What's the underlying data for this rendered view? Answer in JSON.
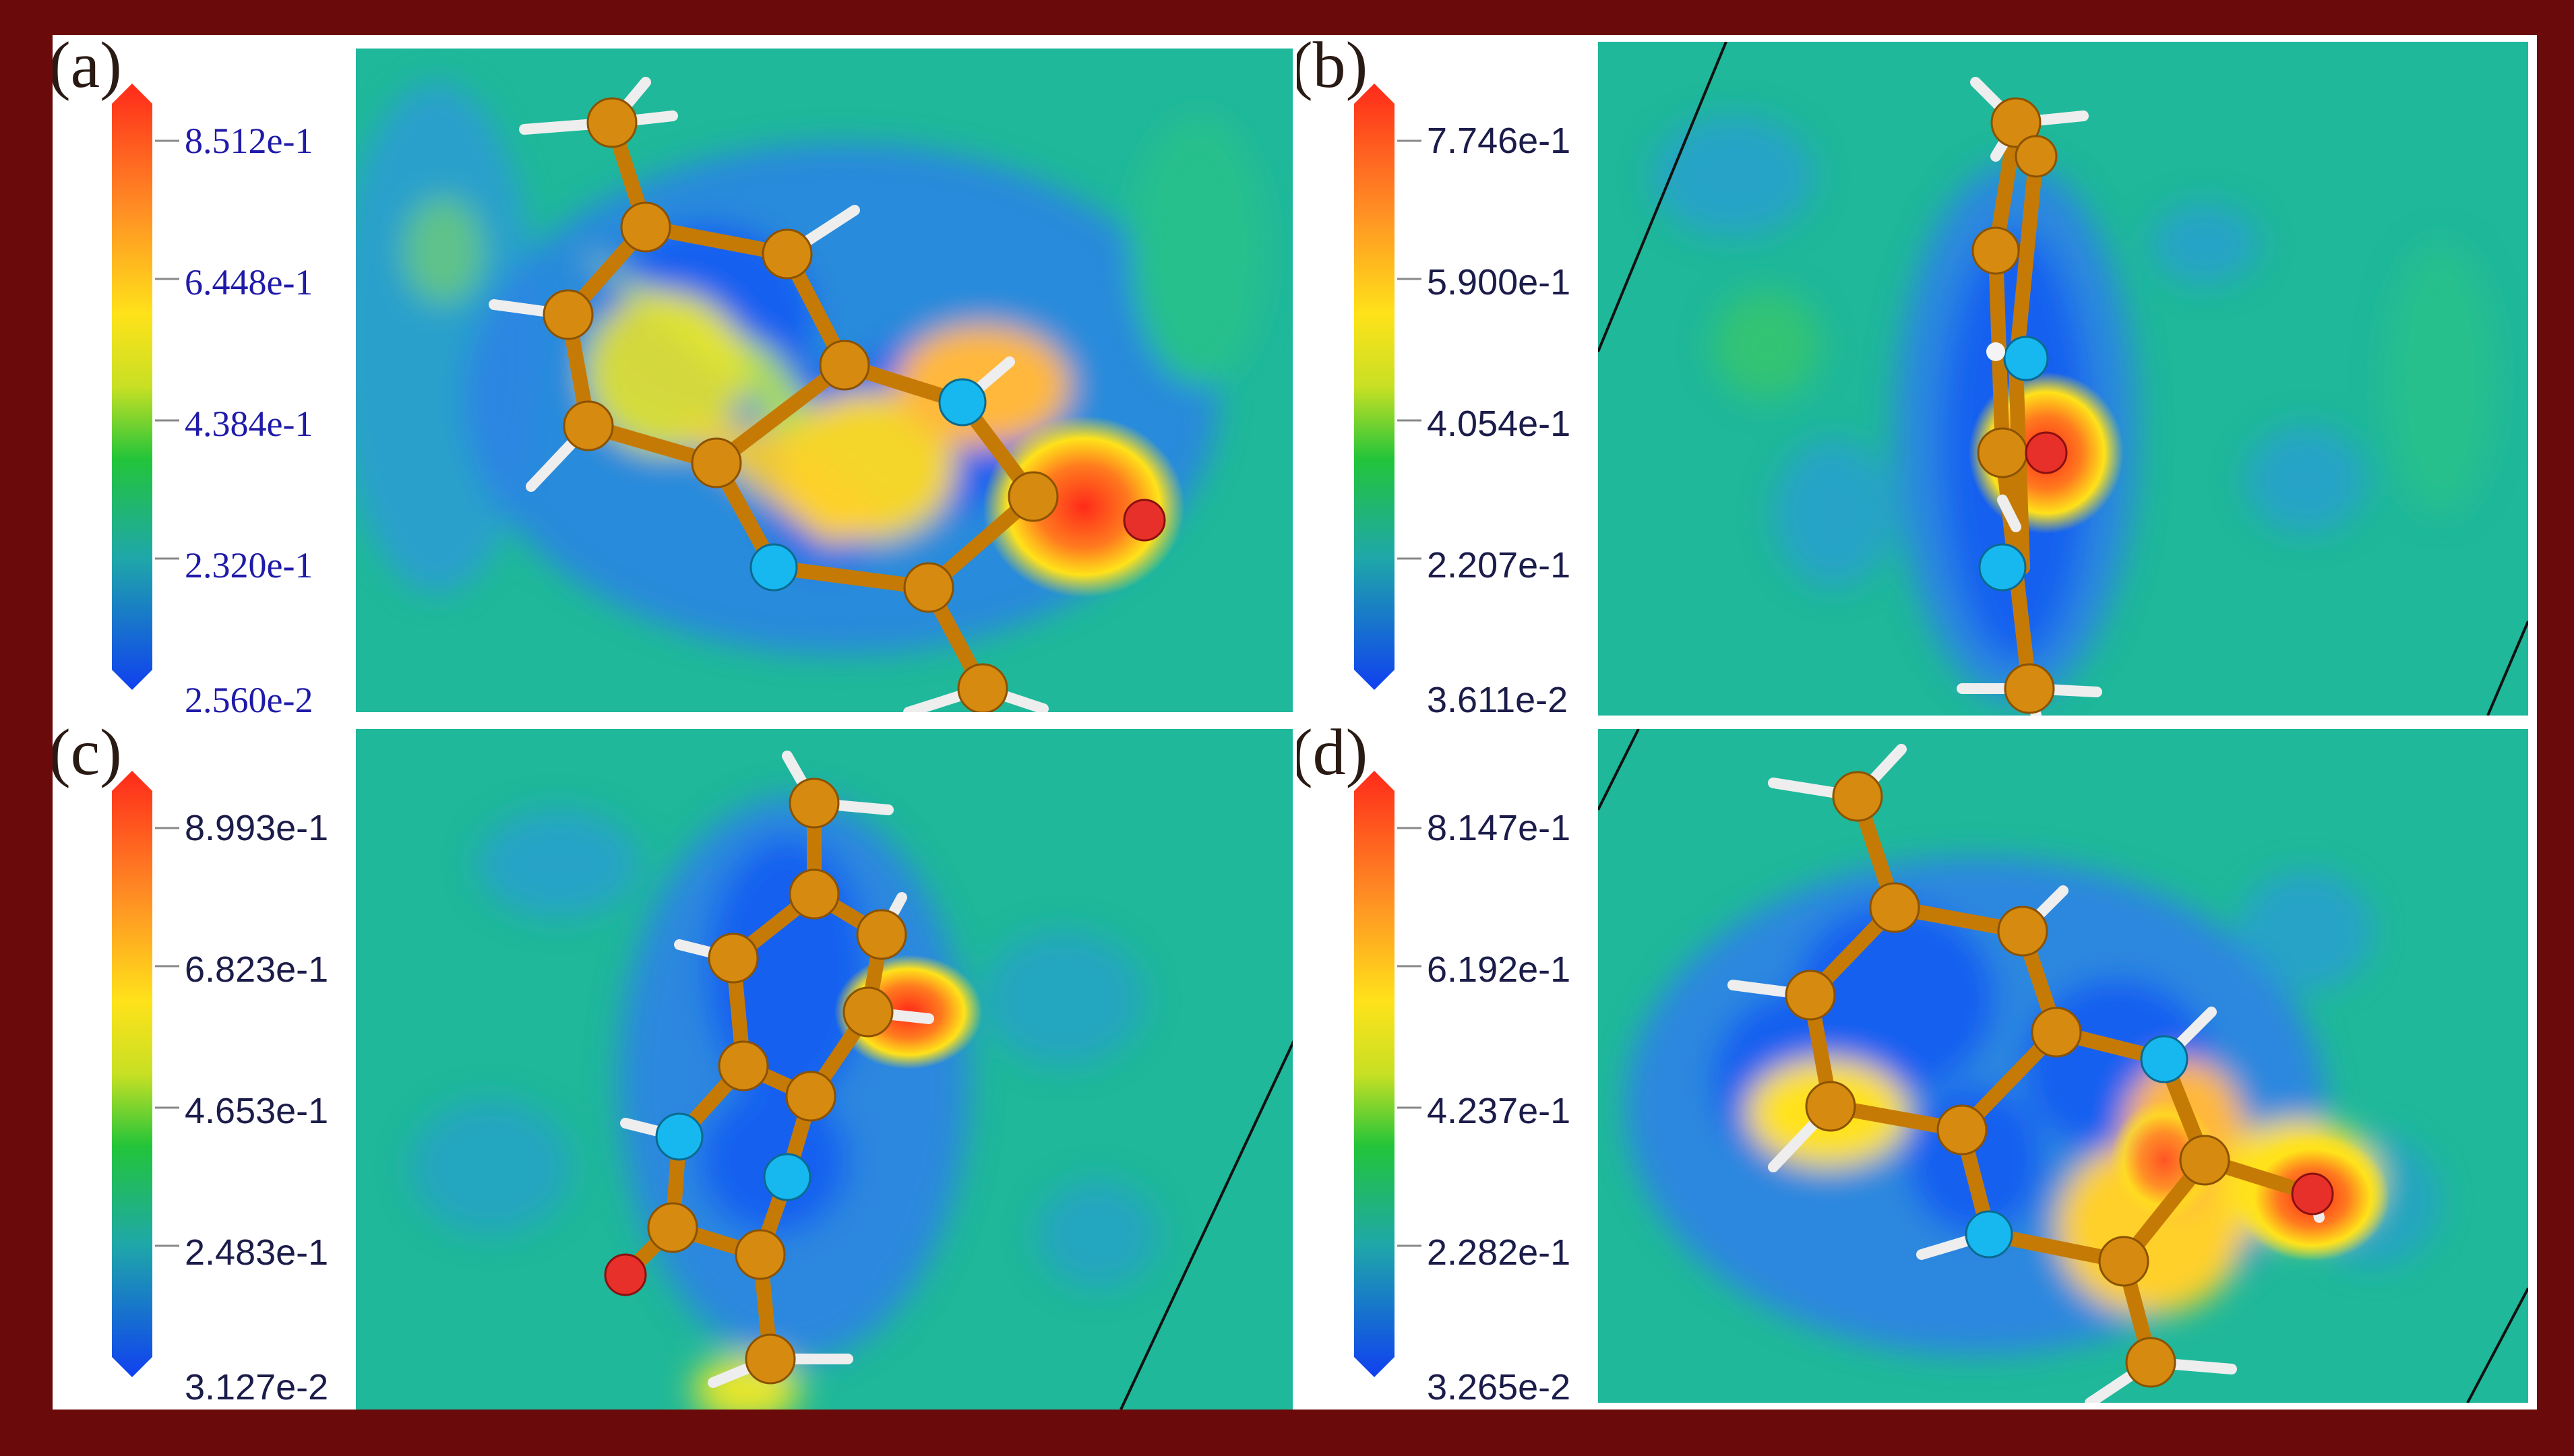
{
  "panels": [
    {
      "id": "a",
      "label": "(a)",
      "ticks": [
        "8.512e-1",
        "6.448e-1",
        "4.384e-1",
        "2.320e-1",
        "2.560e-2"
      ]
    },
    {
      "id": "b",
      "label": "(b)",
      "ticks": [
        "7.746e-1",
        "5.900e-1",
        "4.054e-1",
        "2.207e-1",
        "3.611e-2"
      ]
    },
    {
      "id": "c",
      "label": "(c)",
      "ticks": [
        "8.993e-1",
        "6.823e-1",
        "4.653e-1",
        "2.483e-1",
        "3.127e-2"
      ]
    },
    {
      "id": "d",
      "label": "(d)",
      "ticks": [
        "8.147e-1",
        "6.192e-1",
        "4.237e-1",
        "2.282e-1",
        "3.265e-2"
      ]
    }
  ],
  "colors": {
    "frame": "#6b0a0a",
    "background_field": "#1fb89a",
    "low": "#1f5ff0",
    "high": "#ff2a1a",
    "carbon": "#d68a10",
    "nitrogen": "#17b8ef",
    "oxygen": "#e8302a",
    "hydrogen": "#f4f4f4"
  }
}
